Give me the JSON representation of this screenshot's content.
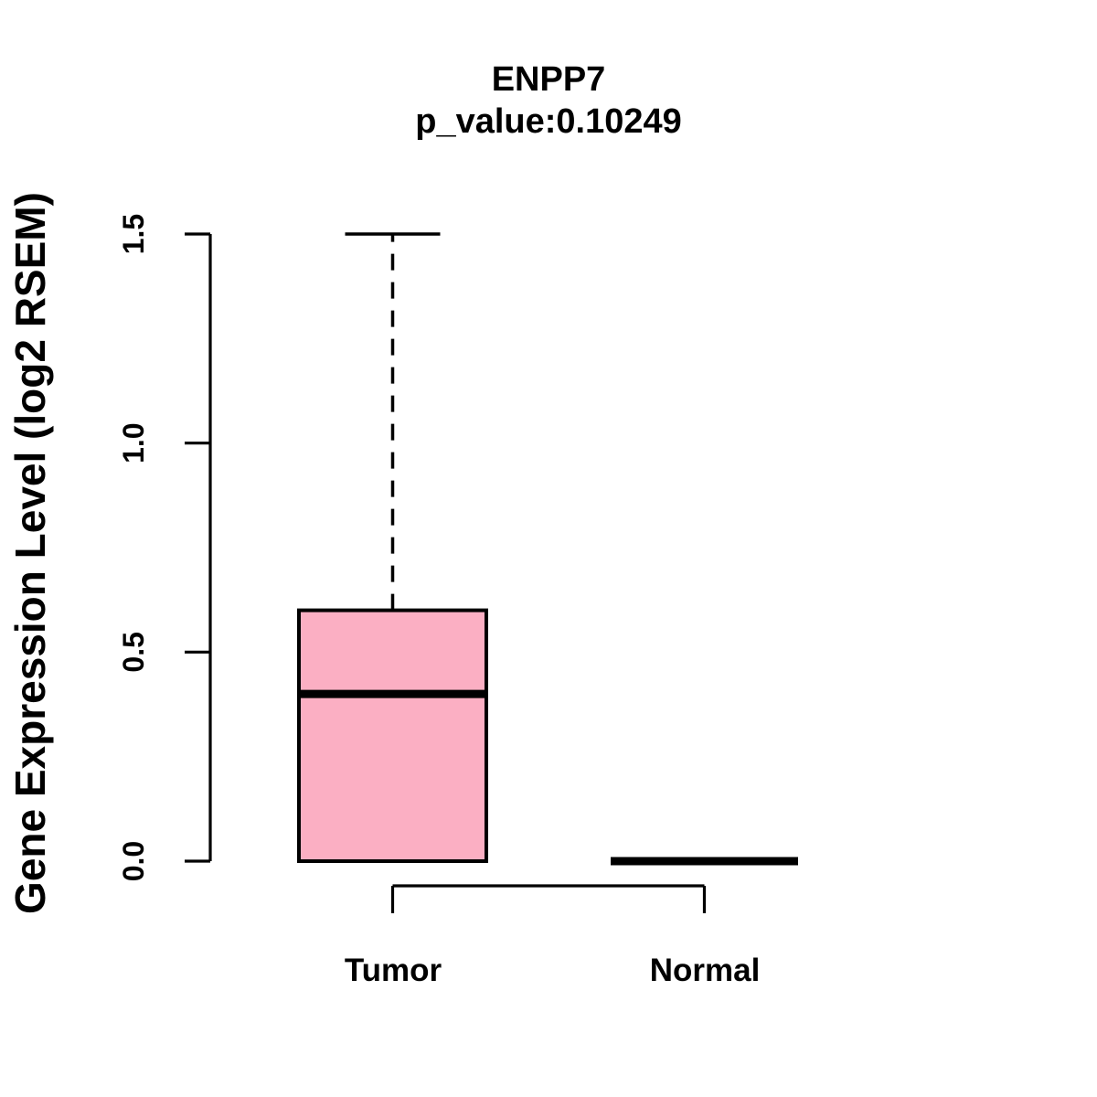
{
  "chart_data": {
    "type": "boxplot",
    "title": "ENPP7",
    "subtitle": "p_value:0.10249",
    "p_value": 0.10249,
    "ylabel": "Gene Expression Level (log2 RSEM)",
    "xlabel": "",
    "ylim": [
      0,
      1.5
    ],
    "yticks": [
      0,
      0.5,
      1,
      1.5
    ],
    "grid": false,
    "legend": null,
    "groups": [
      {
        "label": "Tumor",
        "box_fill": "#FBAFC3",
        "whisker_low": 0.0,
        "q1": 0.0,
        "median": 0.4,
        "q3": 0.6,
        "whisker_high": 1.5
      },
      {
        "label": "Normal",
        "box_fill": "#FBAFC3",
        "whisker_low": 0.0,
        "q1": 0.0,
        "median": 0.0,
        "q3": 0.0,
        "whisker_high": 0.0
      }
    ],
    "colors": {
      "line": "#000000",
      "background": "#FFFFFF",
      "box_fill": "#FBAFC3"
    }
  }
}
